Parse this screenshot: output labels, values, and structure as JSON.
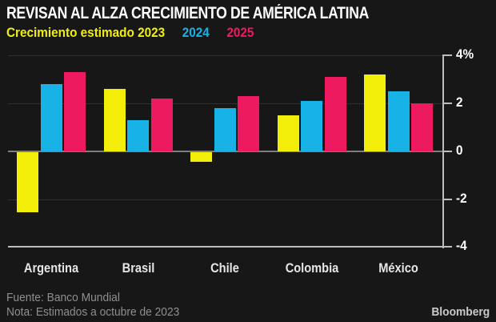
{
  "chart_data": {
    "type": "bar",
    "title": "REVISAN AL ALZA CRECIMIENTO DE AMÉRICA LATINA",
    "subtitle_legend": [
      {
        "label": "Crecimiento estimado 2023",
        "color": "#F2EE0A"
      },
      {
        "label": "2024",
        "color": "#17B2E6"
      },
      {
        "label": "2025",
        "color": "#EE1A5F"
      }
    ],
    "categories": [
      "Argentina",
      "Brasil",
      "Chile",
      "Colombia",
      "México"
    ],
    "series": [
      {
        "name": "2023",
        "color": "#F2EE0A",
        "values": [
          -2.5,
          2.6,
          -0.4,
          1.5,
          3.2
        ]
      },
      {
        "name": "2024",
        "color": "#17B2E6",
        "values": [
          2.8,
          1.3,
          1.8,
          2.1,
          2.5
        ]
      },
      {
        "name": "2025",
        "color": "#EE1A5F",
        "values": [
          3.3,
          2.2,
          2.3,
          3.1,
          2.0
        ]
      }
    ],
    "unit": "%",
    "ylim": [
      -4,
      4
    ],
    "yticks": [
      {
        "label": "4%",
        "value": 4
      },
      {
        "label": "2",
        "value": 2
      },
      {
        "label": "0",
        "value": 0
      },
      {
        "label": "-2",
        "value": -2
      },
      {
        "label": "-4",
        "value": -4
      }
    ],
    "grid": "horizontal",
    "legend_position": "top",
    "yaxis_position": "right"
  },
  "footer": {
    "source": "Fuente: Banco Mundial",
    "note": "Nota: Estimados a octubre de 2023",
    "brand": "Bloomberg"
  },
  "colors": {
    "background": "#171717",
    "title_text": "#FFFFFF",
    "axis_label_text": "#FFFFFF",
    "category_label_text": "#E6E6E6",
    "gridline_minor": "#2F2F2F",
    "zero_line": "#7E7E7E",
    "axis_line": "#BDBDBD",
    "footer_text": "#8F8F8F",
    "brand_text": "#C9C9C9"
  }
}
